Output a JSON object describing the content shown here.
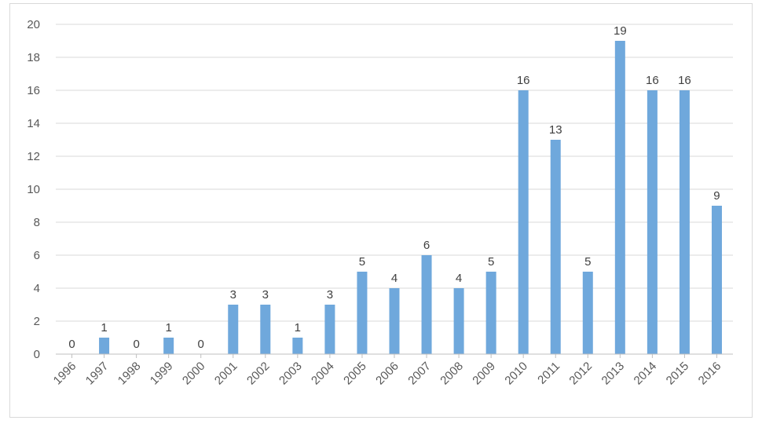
{
  "chart_data": {
    "type": "bar",
    "title": "",
    "xlabel": "",
    "ylabel": "",
    "categories": [
      "1996",
      "1997",
      "1998",
      "1999",
      "2000",
      "2001",
      "2002",
      "2003",
      "2004",
      "2005",
      "2006",
      "2007",
      "2008",
      "2009",
      "2010",
      "2011",
      "2012",
      "2013",
      "2014",
      "2015",
      "2016"
    ],
    "values": [
      0,
      1,
      0,
      1,
      0,
      3,
      3,
      1,
      3,
      5,
      4,
      6,
      4,
      5,
      16,
      13,
      5,
      19,
      16,
      16,
      9
    ],
    "ylim": [
      0,
      20
    ],
    "yticks": [
      0,
      2,
      4,
      6,
      8,
      10,
      12,
      14,
      16,
      18,
      20
    ],
    "grid": true,
    "legend": "none",
    "data_labels": true,
    "bar_color": "#6fa8dc"
  }
}
